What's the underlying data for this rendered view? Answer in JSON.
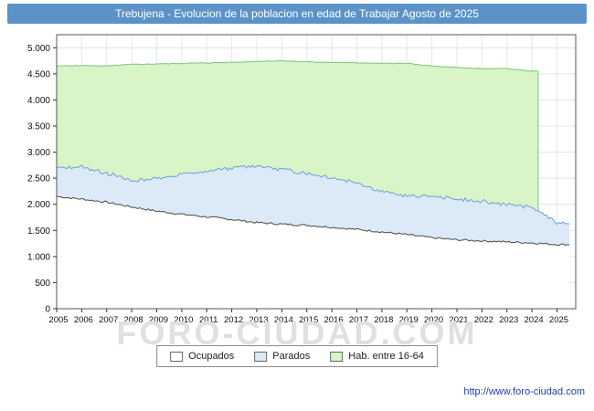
{
  "header": {
    "title": "Trebujena - Evolucion de la poblacion en edad de Trabajar Agosto de 2025"
  },
  "footer": {
    "url": "http://www.foro-ciudad.com"
  },
  "watermark": "FORO-CIUDAD.COM",
  "colors": {
    "titlebar": "#5b93c8",
    "url_text": "#1f3fae",
    "grid_vertical": "#dfe9f5",
    "grid_horizontal": "#e4e4e4",
    "plot_border": "#555555"
  },
  "chart_data": {
    "type": "area",
    "title": "Trebujena - Evolucion de la poblacion en edad de Trabajar Agosto de 2025",
    "xlabel": "",
    "ylabel": "",
    "x_years": [
      2005,
      2006,
      2007,
      2008,
      2009,
      2010,
      2011,
      2012,
      2013,
      2014,
      2015,
      2016,
      2017,
      2018,
      2019,
      2020,
      2021,
      2022,
      2023,
      2024,
      2025
    ],
    "x_end": 2025.58,
    "ylim": [
      0,
      5250
    ],
    "ytick": 500,
    "ytick_labels": [
      "0",
      "500",
      "1.000",
      "1.500",
      "2.000",
      "2.500",
      "3.000",
      "3.500",
      "4.000",
      "4.500",
      "5.000"
    ],
    "grid": true,
    "legend_position": "bottom",
    "series": [
      {
        "name": "Ocupados",
        "key": "ocupados",
        "fill": "#ffffff",
        "stroke": "#4a4a4a",
        "values": [
          2150,
          2100,
          2040,
          1950,
          1870,
          1810,
          1760,
          1710,
          1650,
          1620,
          1600,
          1560,
          1520,
          1470,
          1420,
          1360,
          1320,
          1300,
          1280,
          1260,
          1230
        ]
      },
      {
        "name": "Parados",
        "key": "parados",
        "fill": "#dce9f7",
        "stroke": "#6f9fd8",
        "stacked_on": "ocupados",
        "values": [
          550,
          620,
          560,
          500,
          630,
          770,
          860,
          990,
          1090,
          1050,
          1000,
          960,
          900,
          780,
          730,
          790,
          780,
          750,
          720,
          690,
          420
        ]
      },
      {
        "name": "Hab. entre 16-64",
        "key": "hab_16_64",
        "fill": "#d9f4c6",
        "stroke": "#7cc47c",
        "x_end": 2024.25,
        "values": [
          4650,
          4660,
          4650,
          4680,
          4690,
          4700,
          4710,
          4720,
          4740,
          4750,
          4730,
          4720,
          4710,
          4700,
          4700,
          4650,
          4620,
          4600,
          4600,
          4550
        ]
      }
    ]
  }
}
